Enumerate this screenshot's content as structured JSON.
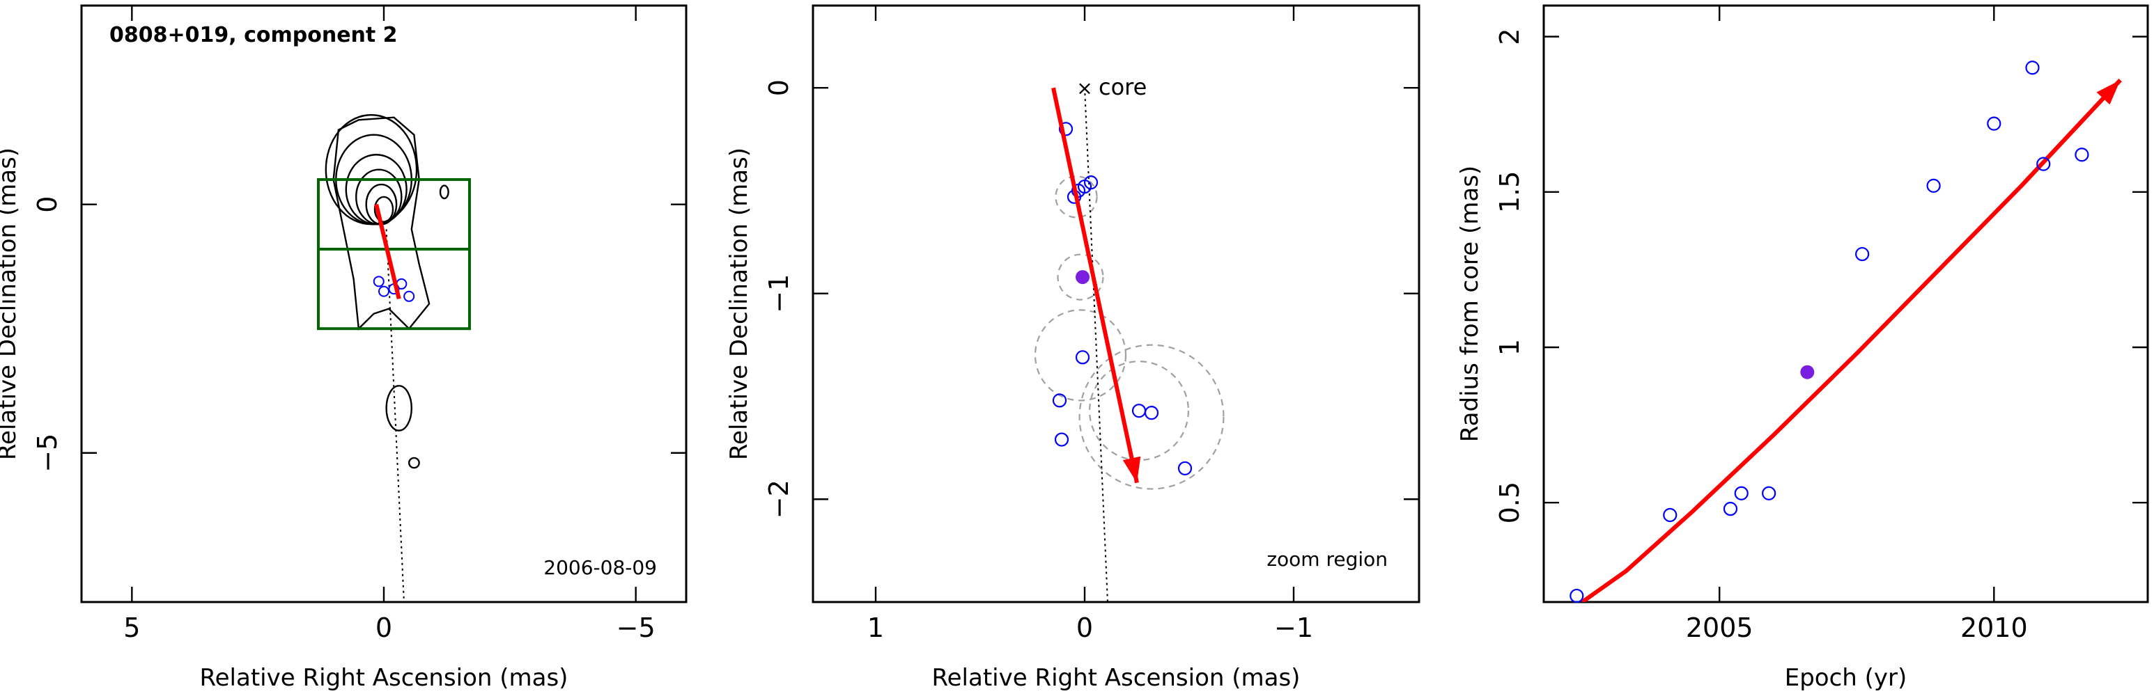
{
  "chart_data": [
    {
      "type": "contour",
      "title": "0808+019, component 2",
      "xlabel": "Relative Right Ascension (mas)",
      "ylabel": "Relative Declination (mas)",
      "xlim": [
        6,
        -6
      ],
      "ylim": [
        -8,
        4
      ],
      "xticks": [
        5,
        0,
        -5
      ],
      "yticks": [
        0,
        -5
      ],
      "date_label": "2006-08-09",
      "contour_colour": "#000000",
      "jet_colour": "#ff0000",
      "box_colour": "#006400",
      "component_colour": "#0000ff",
      "zoom_box": {
        "x": [
          -1.7,
          1.3
        ],
        "y": [
          -2.5,
          0.5
        ],
        "divider_y": -0.9
      },
      "contours": [
        {
          "center": [
            0.25,
            0.7
          ],
          "half_widths": [
            0.9,
            1.1
          ]
        },
        {
          "center": [
            0.2,
            0.5
          ],
          "half_widths": [
            0.75,
            0.9
          ]
        },
        {
          "center": [
            0.15,
            0.3
          ],
          "half_widths": [
            0.6,
            0.7
          ]
        },
        {
          "center": [
            0.1,
            0.15
          ],
          "half_widths": [
            0.45,
            0.55
          ]
        },
        {
          "center": [
            0.05,
            0.0
          ],
          "half_widths": [
            0.3,
            0.4
          ]
        },
        {
          "center": [
            0.0,
            -0.1
          ],
          "half_widths": [
            0.18,
            0.25
          ]
        },
        {
          "center": [
            -0.3,
            -4.1
          ],
          "half_widths": [
            0.25,
            0.45
          ]
        },
        {
          "center": [
            -1.2,
            0.25
          ],
          "half_widths": [
            0.08,
            0.13
          ]
        },
        {
          "center": [
            -0.6,
            -5.2
          ],
          "half_widths": [
            0.1,
            0.1
          ]
        }
      ],
      "outer_contour": [
        [
          0.9,
          1.5
        ],
        [
          0.5,
          1.7
        ],
        [
          -0.2,
          1.75
        ],
        [
          -0.6,
          1.4
        ],
        [
          -0.7,
          0.5
        ],
        [
          -0.55,
          -0.5
        ],
        [
          -0.7,
          -1.2
        ],
        [
          -0.9,
          -2.0
        ],
        [
          -0.5,
          -2.5
        ],
        [
          -0.1,
          -2.1
        ],
        [
          0.2,
          -2.2
        ],
        [
          0.5,
          -2.5
        ],
        [
          0.6,
          -1.5
        ],
        [
          0.8,
          -0.5
        ],
        [
          1.0,
          0.5
        ]
      ],
      "jet_arrow": {
        "from": [
          0.15,
          0.0
        ],
        "to": [
          -0.3,
          -1.9
        ]
      },
      "ridge_line": {
        "from": [
          -0.05,
          -0.5
        ],
        "to": [
          -0.4,
          -8.0
        ]
      },
      "components": [
        [
          0.1,
          -1.55
        ],
        [
          0.0,
          -1.75
        ],
        [
          -0.35,
          -1.6
        ],
        [
          -0.5,
          -1.85
        ],
        [
          -0.2,
          -1.7
        ]
      ]
    },
    {
      "type": "scatter",
      "xlabel": "Relative Right Ascension (mas)",
      "ylabel": "Relative Declination (mas)",
      "xlim": [
        1.3,
        -1.6
      ],
      "ylim": [
        -2.5,
        0.4
      ],
      "xticks": [
        1,
        0,
        -1
      ],
      "yticks": [
        0,
        -1,
        -2
      ],
      "core_label": "core",
      "region_label": "zoom region",
      "jet_colour": "#ff0000",
      "point_colour": "#0000ff",
      "highlight_colour": "#7a1fe0",
      "circle_colour": "#a0a0a0",
      "jet_arrow": {
        "from": [
          0.15,
          0.0
        ],
        "to": [
          -0.25,
          -1.92
        ]
      },
      "ridge_line": {
        "from": [
          0.0,
          0.0
        ],
        "to": [
          -0.11,
          -2.5
        ]
      },
      "points": [
        [
          0.09,
          -0.2
        ],
        [
          0.03,
          -0.5
        ],
        [
          0.0,
          -0.48
        ],
        [
          -0.03,
          -0.46
        ],
        [
          0.05,
          -0.53
        ],
        [
          0.12,
          -1.52
        ],
        [
          0.01,
          -1.31
        ],
        [
          0.11,
          -1.71
        ],
        [
          -0.26,
          -1.57
        ],
        [
          -0.32,
          -1.58
        ],
        [
          -0.48,
          -1.85
        ]
      ],
      "highlight_point": [
        0.01,
        -0.92
      ],
      "circles": [
        {
          "center": [
            0.04,
            -0.53
          ],
          "radius": 0.1
        },
        {
          "center": [
            0.02,
            -0.92
          ],
          "radius": 0.11
        },
        {
          "center": [
            0.02,
            -1.3
          ],
          "radius": 0.22
        },
        {
          "center": [
            -0.26,
            -1.57
          ],
          "radius": 0.24
        },
        {
          "center": [
            -0.32,
            -1.6
          ],
          "radius": 0.35
        }
      ]
    },
    {
      "type": "scatter",
      "xlabel": "Epoch (yr)",
      "ylabel": "Radius from core (mas)",
      "xlim": [
        2001.8,
        2012.8
      ],
      "ylim": [
        0.18,
        2.1
      ],
      "xticks": [
        2005,
        2010
      ],
      "xtick_labels": [
        "2005",
        "2010"
      ],
      "yticks": [
        0.5,
        1,
        1.5,
        2
      ],
      "ytick_labels": [
        "0.5",
        "1",
        "1.5",
        "2"
      ],
      "fit_colour": "#ff0000",
      "point_colour": "#0000ff",
      "highlight_colour": "#7a1fe0",
      "x": [
        2002.4,
        2004.1,
        2005.2,
        2005.4,
        2005.9,
        2007.6,
        2008.9,
        2010.0,
        2010.7,
        2010.9,
        2011.6
      ],
      "y": [
        0.2,
        0.46,
        0.48,
        0.53,
        0.53,
        1.3,
        1.52,
        1.72,
        1.9,
        1.59,
        1.62
      ],
      "highlight": {
        "x": 2006.6,
        "y": 0.92
      },
      "fit_line": {
        "x": [
          2002.5,
          2003.3,
          2004.5,
          2006.0,
          2007.5,
          2009.0,
          2010.5,
          2012.3
        ],
        "y": [
          0.18,
          0.28,
          0.47,
          0.72,
          0.98,
          1.25,
          1.52,
          1.86
        ]
      }
    }
  ]
}
